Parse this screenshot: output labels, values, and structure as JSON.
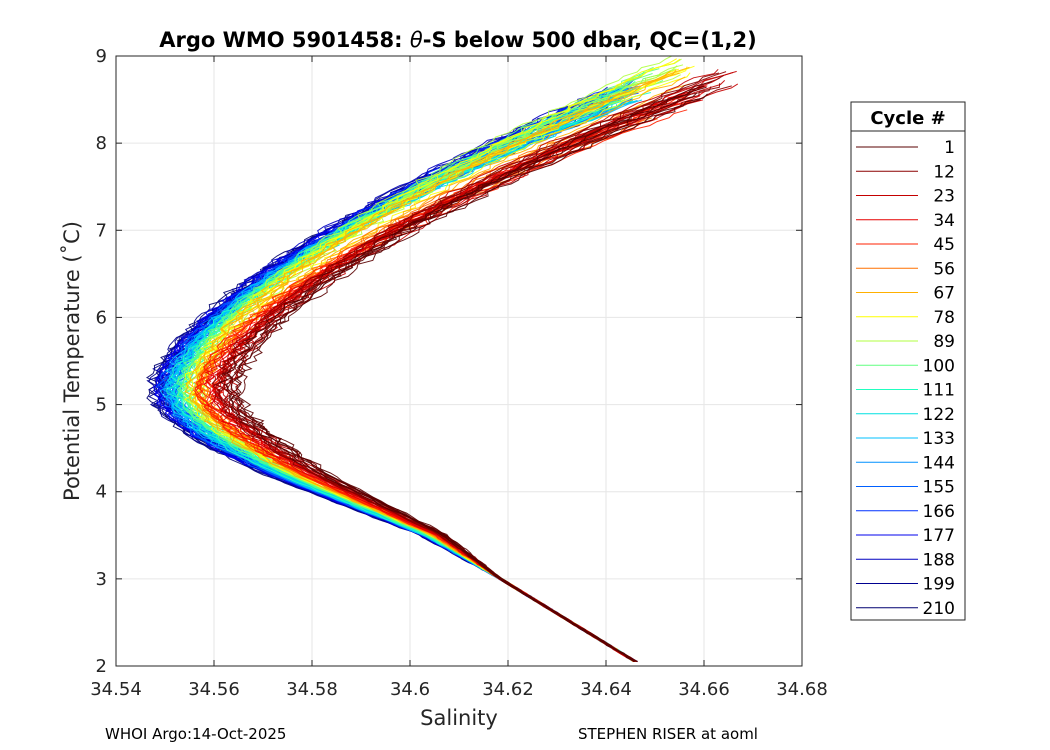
{
  "chart_data": {
    "type": "line",
    "title_prefix": "Argo WMO 5901458: ",
    "title_theta": "θ",
    "title_suffix": "-S below 500 dbar,  QC=(1,2)",
    "xlabel": "Salinity",
    "ylabel": "Potential Temperature (˚C)",
    "xlim": [
      34.54,
      34.68
    ],
    "ylim": [
      2,
      9
    ],
    "xticks": [
      34.54,
      34.56,
      34.58,
      34.6,
      34.62,
      34.64,
      34.66,
      34.68
    ],
    "xtick_labels": [
      "34.54",
      "34.56",
      "34.58",
      "34.6",
      "34.62",
      "34.64",
      "34.66",
      "34.68"
    ],
    "yticks": [
      2,
      3,
      4,
      5,
      6,
      7,
      8,
      9
    ],
    "ytick_labels": [
      "2",
      "3",
      "4",
      "5",
      "6",
      "7",
      "8",
      "9"
    ],
    "grid": true,
    "legend_position": "outside-right",
    "legend_title": "Cycle #",
    "series": [
      {
        "name": "1",
        "color": "#5a0000",
        "s_shift": 0.01,
        "top_t": 8.6,
        "top_s": 34.66
      },
      {
        "name": "12",
        "color": "#8b0000",
        "s_shift": 0.009,
        "top_t": 8.7,
        "top_s": 34.664
      },
      {
        "name": "23",
        "color": "#c40000",
        "s_shift": 0.0085,
        "top_t": 8.75,
        "top_s": 34.665
      },
      {
        "name": "34",
        "color": "#e60000",
        "s_shift": 0.007,
        "top_t": 8.6,
        "top_s": 34.66
      },
      {
        "name": "45",
        "color": "#ff2000",
        "s_shift": 0.0055,
        "top_t": 8.5,
        "top_s": 34.655
      },
      {
        "name": "56",
        "color": "#ff7000",
        "s_shift": 0.0045,
        "top_t": 8.4,
        "top_s": 34.65
      },
      {
        "name": "67",
        "color": "#ffb000",
        "s_shift": 0.0035,
        "top_t": 8.8,
        "top_s": 34.655
      },
      {
        "name": "78",
        "color": "#ffff00",
        "s_shift": 0.003,
        "top_t": 8.85,
        "top_s": 34.656
      },
      {
        "name": "89",
        "color": "#b0ff40",
        "s_shift": 0.002,
        "top_t": 8.9,
        "top_s": 34.655
      },
      {
        "name": "100",
        "color": "#60ff80",
        "s_shift": 0.001,
        "top_t": 8.8,
        "top_s": 34.65
      },
      {
        "name": "111",
        "color": "#20ffc0",
        "s_shift": -0.0005,
        "top_t": 8.7,
        "top_s": 34.647
      },
      {
        "name": "122",
        "color": "#00e0e0",
        "s_shift": -0.001,
        "top_t": 8.6,
        "top_s": 34.646
      },
      {
        "name": "133",
        "color": "#00c0ff",
        "s_shift": -0.0015,
        "top_t": 8.55,
        "top_s": 34.645
      },
      {
        "name": "144",
        "color": "#0090ff",
        "s_shift": -0.002,
        "top_t": 8.5,
        "top_s": 34.644
      },
      {
        "name": "155",
        "color": "#0060ff",
        "s_shift": -0.0025,
        "top_t": 8.6,
        "top_s": 34.645
      },
      {
        "name": "166",
        "color": "#0030ff",
        "s_shift": -0.003,
        "top_t": 8.65,
        "top_s": 34.645
      },
      {
        "name": "177",
        "color": "#0000ee",
        "s_shift": -0.0035,
        "top_t": 8.6,
        "top_s": 34.643
      },
      {
        "name": "188",
        "color": "#0000c0",
        "s_shift": -0.004,
        "top_t": 8.55,
        "top_s": 34.642
      },
      {
        "name": "199",
        "color": "#000090",
        "s_shift": -0.0045,
        "top_t": 8.5,
        "top_s": 34.641
      },
      {
        "name": "210",
        "color": "#000070",
        "s_shift": -0.005,
        "top_t": 8.45,
        "top_s": 34.64
      }
    ],
    "shape": {
      "bottom_t": 2.05,
      "bottom_s": 34.646,
      "mid_t": 3.5,
      "mid_s": 34.604,
      "knee_t": 4.2,
      "knee_s": 34.575,
      "min_t": 5.2,
      "min_s": 34.5535
    }
  },
  "footer": {
    "left": "WHOI Argo:14-Oct-2025",
    "right": "STEPHEN RISER at aoml"
  }
}
